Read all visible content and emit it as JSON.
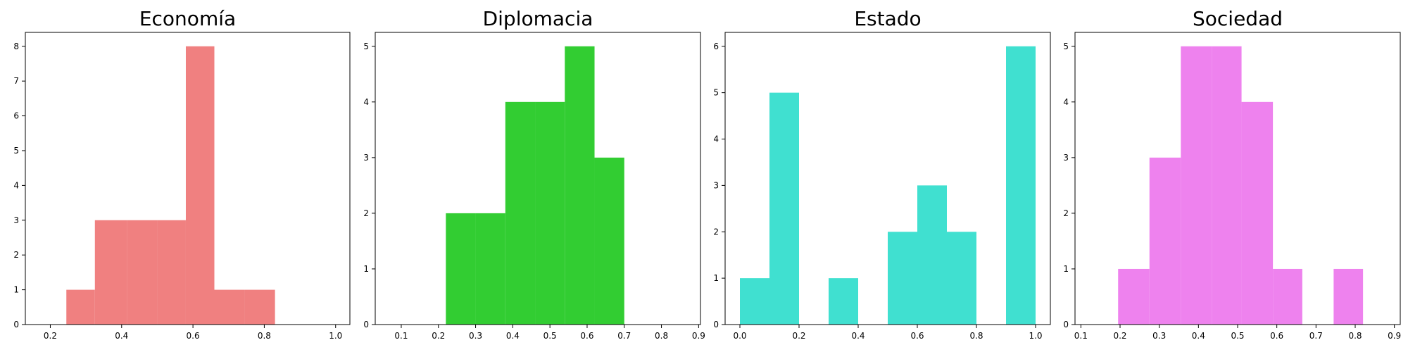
{
  "chart_data": [
    {
      "type": "bar",
      "title": "Economía",
      "xlabel": "",
      "ylabel": "",
      "color": "#f08080",
      "xlim": [
        0.13,
        1.04
      ],
      "ylim": [
        0,
        8.4
      ],
      "xticks": [
        0.2,
        0.4,
        0.6,
        0.8,
        1.0
      ],
      "xtick_labels": [
        "0.2",
        "0.4",
        "0.6",
        "0.8",
        "1.0"
      ],
      "yticks": [
        0,
        1,
        2,
        3,
        4,
        5,
        6,
        7,
        8
      ],
      "ytick_labels": [
        "0",
        "1",
        "2",
        "3",
        "4",
        "5",
        "6",
        "7",
        "8"
      ],
      "bins": [
        {
          "x0": 0.245,
          "x1": 0.325,
          "count": 1
        },
        {
          "x0": 0.325,
          "x1": 0.415,
          "count": 3
        },
        {
          "x0": 0.415,
          "x1": 0.5,
          "count": 3
        },
        {
          "x0": 0.5,
          "x1": 0.58,
          "count": 3
        },
        {
          "x0": 0.58,
          "x1": 0.66,
          "count": 8
        },
        {
          "x0": 0.66,
          "x1": 0.745,
          "count": 1
        },
        {
          "x0": 0.745,
          "x1": 0.83,
          "count": 1
        }
      ]
    },
    {
      "type": "bar",
      "title": "Diplomacia",
      "xlabel": "",
      "ylabel": "",
      "color": "#32cd32",
      "xlim": [
        0.03,
        0.905
      ],
      "ylim": [
        0,
        5.25
      ],
      "xticks": [
        0.1,
        0.2,
        0.3,
        0.4,
        0.5,
        0.6,
        0.7,
        0.8,
        0.9
      ],
      "xtick_labels": [
        "0.1",
        "0.2",
        "0.3",
        "0.4",
        "0.5",
        "0.6",
        "0.7",
        "0.8",
        "0.9"
      ],
      "yticks": [
        0,
        1,
        2,
        3,
        4,
        5
      ],
      "ytick_labels": [
        "0",
        "1",
        "2",
        "3",
        "4",
        "5"
      ],
      "bins": [
        {
          "x0": 0.22,
          "x1": 0.3,
          "count": 2
        },
        {
          "x0": 0.3,
          "x1": 0.38,
          "count": 2
        },
        {
          "x0": 0.38,
          "x1": 0.46,
          "count": 4
        },
        {
          "x0": 0.46,
          "x1": 0.54,
          "count": 4
        },
        {
          "x0": 0.54,
          "x1": 0.62,
          "count": 5
        },
        {
          "x0": 0.62,
          "x1": 0.7,
          "count": 3
        }
      ]
    },
    {
      "type": "bar",
      "title": "Estado",
      "xlabel": "",
      "ylabel": "",
      "color": "#40e0d0",
      "xlim": [
        -0.05,
        1.05
      ],
      "ylim": [
        0,
        6.3
      ],
      "xticks": [
        0.0,
        0.2,
        0.4,
        0.6,
        0.8,
        1.0
      ],
      "xtick_labels": [
        "0.0",
        "0.2",
        "0.4",
        "0.6",
        "0.8",
        "1.0"
      ],
      "yticks": [
        0,
        1,
        2,
        3,
        4,
        5,
        6
      ],
      "ytick_labels": [
        "0",
        "1",
        "2",
        "3",
        "4",
        "5",
        "6"
      ],
      "bins": [
        {
          "x0": 0.0,
          "x1": 0.1,
          "count": 1
        },
        {
          "x0": 0.1,
          "x1": 0.2,
          "count": 5
        },
        {
          "x0": 0.2,
          "x1": 0.3,
          "count": 0
        },
        {
          "x0": 0.3,
          "x1": 0.4,
          "count": 1
        },
        {
          "x0": 0.4,
          "x1": 0.5,
          "count": 0
        },
        {
          "x0": 0.5,
          "x1": 0.6,
          "count": 2
        },
        {
          "x0": 0.6,
          "x1": 0.7,
          "count": 3
        },
        {
          "x0": 0.7,
          "x1": 0.8,
          "count": 2
        },
        {
          "x0": 0.8,
          "x1": 0.9,
          "count": 0
        },
        {
          "x0": 0.9,
          "x1": 1.0,
          "count": 6
        }
      ]
    },
    {
      "type": "bar",
      "title": "Sociedad",
      "xlabel": "",
      "ylabel": "",
      "color": "#ee82ee",
      "xlim": [
        0.085,
        0.915
      ],
      "ylim": [
        0,
        5.25
      ],
      "xticks": [
        0.1,
        0.2,
        0.3,
        0.4,
        0.5,
        0.6,
        0.7,
        0.8,
        0.9
      ],
      "xtick_labels": [
        "0.1",
        "0.2",
        "0.3",
        "0.4",
        "0.5",
        "0.6",
        "0.7",
        "0.8",
        "0.9"
      ],
      "yticks": [
        0,
        1,
        2,
        3,
        4,
        5
      ],
      "ytick_labels": [
        "0",
        "1",
        "2",
        "3",
        "4",
        "5"
      ],
      "bins": [
        {
          "x0": 0.195,
          "x1": 0.275,
          "count": 1
        },
        {
          "x0": 0.275,
          "x1": 0.355,
          "count": 3
        },
        {
          "x0": 0.355,
          "x1": 0.435,
          "count": 5
        },
        {
          "x0": 0.435,
          "x1": 0.51,
          "count": 5
        },
        {
          "x0": 0.51,
          "x1": 0.59,
          "count": 4
        },
        {
          "x0": 0.59,
          "x1": 0.665,
          "count": 1
        },
        {
          "x0": 0.665,
          "x1": 0.745,
          "count": 0
        },
        {
          "x0": 0.745,
          "x1": 0.82,
          "count": 1
        }
      ]
    }
  ]
}
